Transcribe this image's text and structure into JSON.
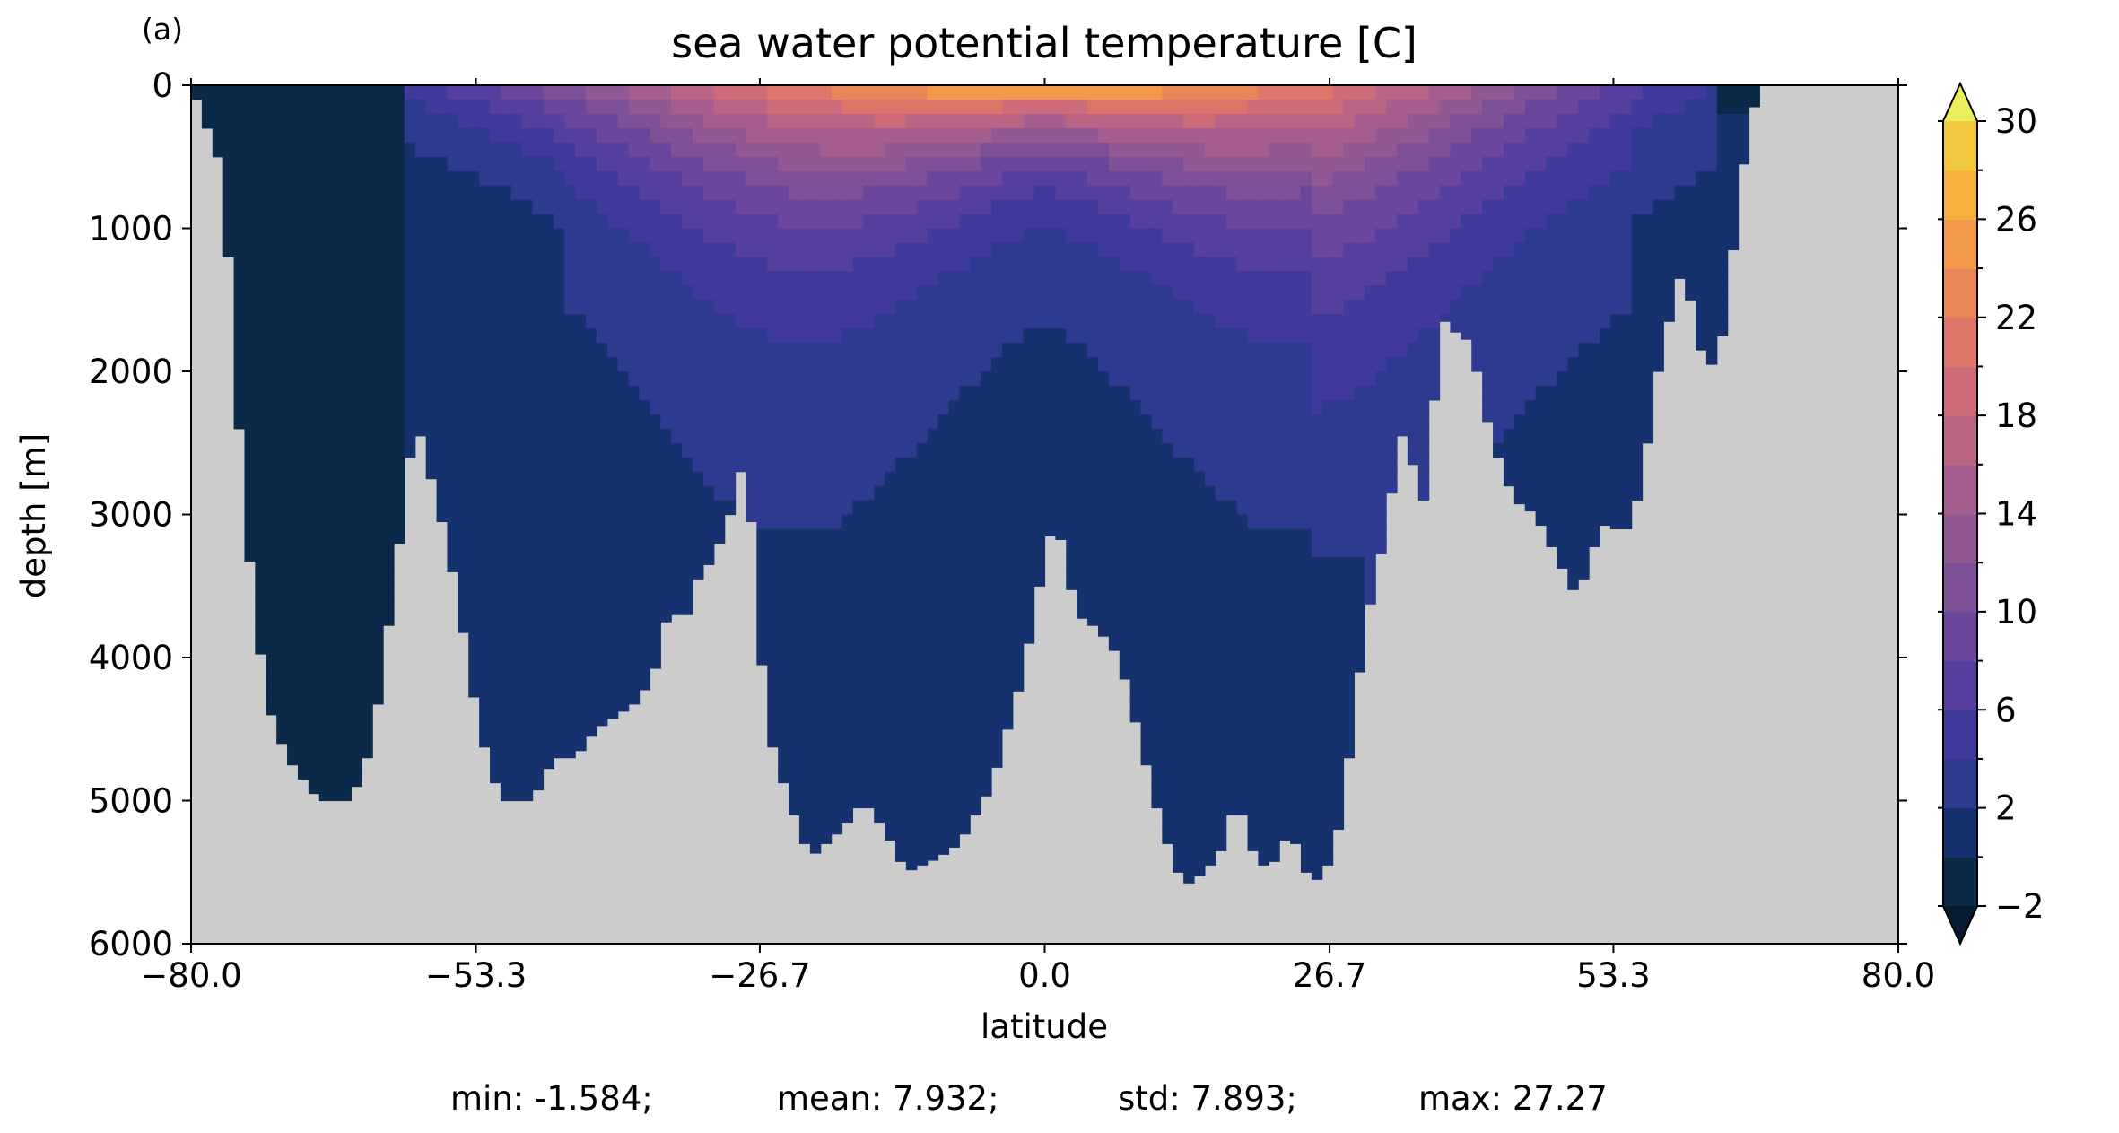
{
  "panel_label": "(a)",
  "chart_data": {
    "type": "heatmap",
    "title": "sea water potential temperature [C]",
    "xlabel": "latitude",
    "ylabel": "depth [m]",
    "xlim": [
      -80.0,
      80.0
    ],
    "ylim": [
      6000,
      0
    ],
    "y_inverted": true,
    "x_ticks": [
      "−80.0",
      "−53.3",
      "−26.7",
      "0.0",
      "26.7",
      "53.3",
      "80.0"
    ],
    "x_tick_values": [
      -80.0,
      -53.3,
      -26.7,
      0.0,
      26.7,
      53.3,
      80.0
    ],
    "y_ticks": [
      "0",
      "1000",
      "2000",
      "3000",
      "4000",
      "5000",
      "6000"
    ],
    "y_tick_values": [
      0,
      1000,
      2000,
      3000,
      4000,
      5000,
      6000
    ],
    "colorbar": {
      "levels": [
        -2,
        0,
        2,
        4,
        6,
        8,
        10,
        12,
        14,
        16,
        18,
        20,
        22,
        24,
        26,
        28,
        30
      ],
      "tick_labels": [
        "−2",
        "2",
        "6",
        "10",
        "14",
        "18",
        "22",
        "26",
        "30"
      ],
      "tick_values": [
        -2,
        2,
        6,
        10,
        14,
        18,
        22,
        26,
        30
      ],
      "extend": "both",
      "colors": [
        "#0b2a4a",
        "#16326e",
        "#2d3a90",
        "#3f3a9c",
        "#563f9f",
        "#6a479c",
        "#7d5097",
        "#915893",
        "#a65e8e",
        "#bb6585",
        "#cd6c78",
        "#dd7668",
        "#e98658",
        "#f29a4a",
        "#f5b03e",
        "#f2c83e"
      ],
      "under_color": "#061a30",
      "over_color": "#e9ef5a"
    },
    "land_color": "#cccccc",
    "stats": {
      "min": "min: -1.584;",
      "mean": "mean: 7.932;",
      "std": "std: 7.893;",
      "max": "max: 27.27"
    }
  }
}
